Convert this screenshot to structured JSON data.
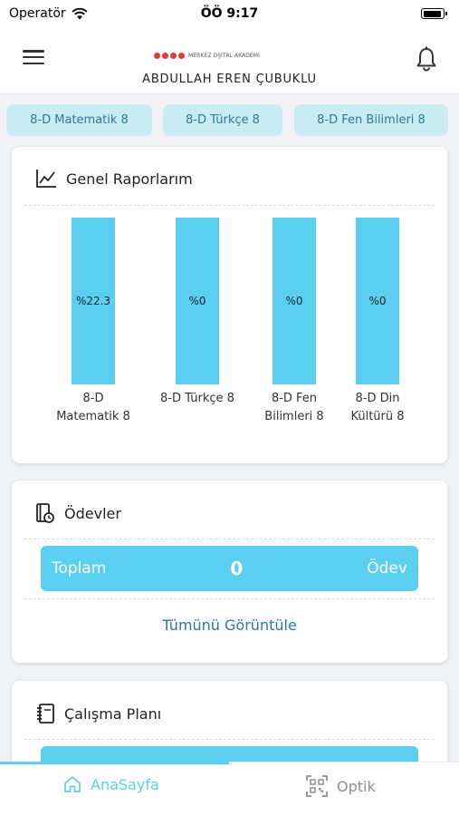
{
  "status_bar": {
    "carrier": "Operatör",
    "time": "ÖÖ 9:17"
  },
  "header": {
    "logo_text": "MERKEZ DİJİTAL AKADEMİ",
    "user_name": "ABDULLAH EREN ÇUBUKLU"
  },
  "courses": [
    {
      "label": "8-D Matematik 8"
    },
    {
      "label": "8-D Türkçe 8"
    },
    {
      "label": "8-D Fen Bilimleri 8"
    }
  ],
  "reports": {
    "title": "Genel Raporlarım",
    "chart_data": {
      "type": "bar",
      "categories": [
        "8-D Matematik 8",
        "8-D Türkçe 8",
        "8-D Fen Bilimleri 8",
        "8-D Din Kültürü 8"
      ],
      "value_labels": [
        "%22.3",
        "%0",
        "%0",
        "%0"
      ],
      "values": [
        22.3,
        0,
        0,
        0
      ],
      "bar_color": "#5bcff0"
    },
    "category_lines": [
      [
        "8-D",
        "Matematik 8"
      ],
      [
        "8-D Türkçe 8"
      ],
      [
        "8-D Fen",
        "Bilimleri 8"
      ],
      [
        "8-D Din",
        "Kültürü 8"
      ]
    ]
  },
  "homework": {
    "title": "Ödevler",
    "total_label": "Toplam",
    "total_value": "0",
    "unit_label": "Ödev",
    "view_all": "Tümünü Görüntüle"
  },
  "study_plan": {
    "title": "Çalışma Planı"
  },
  "bottom_nav": {
    "home_label": "AnaSayfa",
    "optic_label": "Optik"
  },
  "colors": {
    "accent": "#5bcff0",
    "chip_bg": "#c9ebf2",
    "chip_text": "#2a7d8c",
    "nav_active": "#5bcff0",
    "nav_inactive": "#8a8f96"
  },
  "icons": {
    "menu": "hamburger-icon",
    "bell": "bell-icon",
    "reports": "line-chart-icon",
    "homework": "homework-book-icon",
    "plan": "planner-icon",
    "home": "home-icon",
    "optic": "qr-scan-icon"
  }
}
